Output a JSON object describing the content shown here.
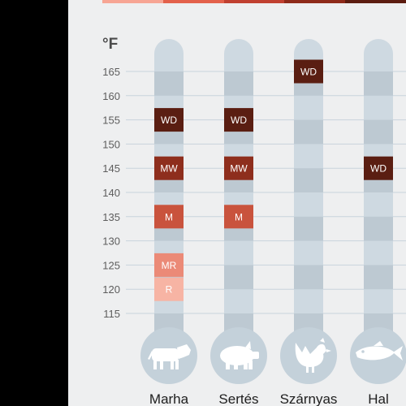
{
  "chart_data": {
    "type": "table",
    "unit": "°F",
    "y_ticks": [
      165,
      160,
      155,
      150,
      145,
      140,
      135,
      130,
      125,
      120,
      115
    ],
    "categories": [
      {
        "label": "Marha",
        "icon": "cow-icon"
      },
      {
        "label": "Sertés",
        "icon": "pig-icon"
      },
      {
        "label": "Szárnyas",
        "icon": "chicken-icon"
      },
      {
        "label": "Hal",
        "icon": "fish-icon"
      }
    ],
    "markers": [
      {
        "category": "Marha",
        "label": "WD",
        "value": 155,
        "color": "#5a1e12"
      },
      {
        "category": "Marha",
        "label": "MW",
        "value": 145,
        "color": "#8e2e1d"
      },
      {
        "category": "Marha",
        "label": "M",
        "value": 135,
        "color": "#c9533d"
      },
      {
        "category": "Marha",
        "label": "MR",
        "value": 125,
        "color": "#eb8a77"
      },
      {
        "category": "Marha",
        "label": "R",
        "value": 120,
        "color": "#f7b4a4"
      },
      {
        "category": "Sertés",
        "label": "WD",
        "value": 155,
        "color": "#5a1e12"
      },
      {
        "category": "Sertés",
        "label": "MW",
        "value": 145,
        "color": "#8e2e1d"
      },
      {
        "category": "Sertés",
        "label": "M",
        "value": 135,
        "color": "#c9533d"
      },
      {
        "category": "Szárnyas",
        "label": "WD",
        "value": 165,
        "color": "#5a1e12"
      },
      {
        "category": "Hal",
        "label": "WD",
        "value": 145,
        "color": "#5a1e12"
      }
    ],
    "strip_colors": [
      "#f7a594",
      "#e3614b",
      "#c04030",
      "#8e2a1a",
      "#5c1c10"
    ],
    "tube_color": "#ced9e1",
    "tube_stripe_color": "#bdc9d2",
    "bulb_color": "#c4d1da"
  }
}
